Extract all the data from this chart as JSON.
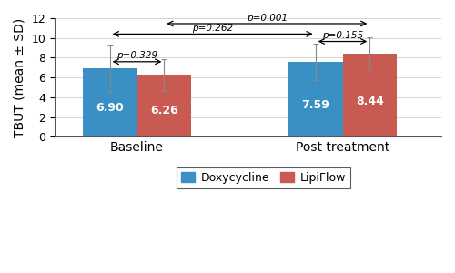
{
  "groups": [
    "Baseline",
    "Post treatment"
  ],
  "bar_labels": [
    "Doxycycline",
    "LipiFlow"
  ],
  "values": [
    [
      6.9,
      6.26
    ],
    [
      7.59,
      8.44
    ]
  ],
  "errors": [
    [
      2.35,
      1.6
    ],
    [
      1.85,
      1.65
    ]
  ],
  "bar_colors": [
    "#3a8fc4",
    "#c85a52"
  ],
  "bar_width": 0.33,
  "group_positions": [
    1.0,
    2.25
  ],
  "ylim": [
    0,
    12
  ],
  "yticks": [
    0,
    2,
    4,
    6,
    8,
    10,
    12
  ],
  "ylabel": "TBUT (mean ± SD)",
  "pval_within_baseline": "p=0.329",
  "pval_within_post": "p=0.155",
  "pval_across_doxy": "p=0.262",
  "pval_across_lipi": "p=0.001",
  "legend_labels": [
    "Doxycycline",
    "LipiFlow"
  ],
  "bar_fontsize": 9,
  "group_label_fontsize": 10,
  "ylabel_fontsize": 10,
  "annotation_fontsize": 7.5
}
